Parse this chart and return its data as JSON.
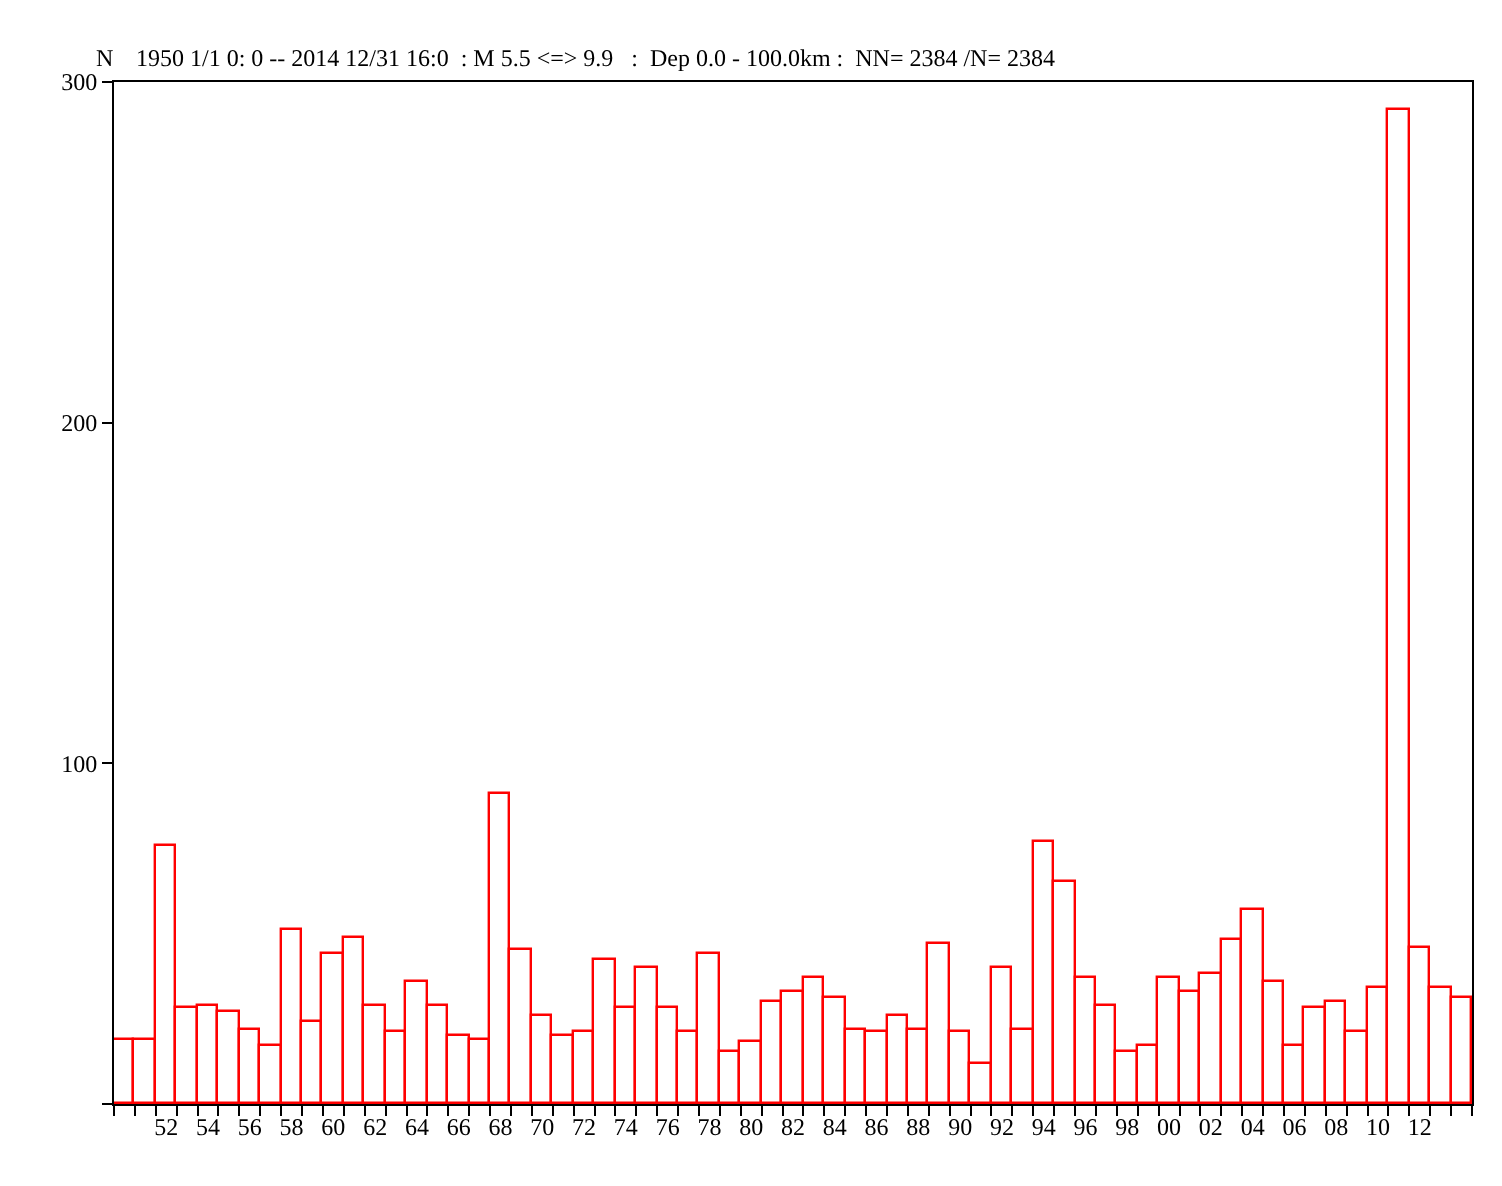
{
  "chart_data": {
    "type": "bar",
    "title": "1950 1/1 0: 0 -- 2014 12/31 16:0  : M 5.5 <=> 9.9   :  Dep 0.0 - 100.0km :  NN= 2384 /N= 2384",
    "ylabel": "N",
    "categories": [
      null,
      null,
      "52",
      null,
      "54",
      null,
      "56",
      null,
      "58",
      null,
      "60",
      null,
      "62",
      null,
      "64",
      null,
      "66",
      null,
      "68",
      null,
      "70",
      null,
      "72",
      null,
      "74",
      null,
      "76",
      null,
      "78",
      null,
      "80",
      null,
      "82",
      null,
      "84",
      null,
      "86",
      null,
      "88",
      null,
      "90",
      null,
      "92",
      null,
      "94",
      null,
      "96",
      null,
      "98",
      null,
      "00",
      null,
      "02",
      null,
      "04",
      null,
      "06",
      null,
      "08",
      null,
      "10",
      null,
      "12",
      null,
      null
    ],
    "series": [
      {
        "color": "#ff0000",
        "values": [
          19,
          19,
          76,
          28,
          29,
          27,
          22,
          17,
          51,
          24,
          44,
          49,
          29,
          21,
          36,
          29,
          20,
          19,
          91,
          45,
          26,
          20,
          21,
          42,
          28,
          40,
          28,
          21,
          44,
          15,
          18,
          30,
          33,
          37,
          31,
          22,
          21,
          26,
          22,
          47,
          21,
          12,
          40,
          22,
          77,
          65,
          37,
          29,
          15,
          17,
          37,
          33,
          38,
          48,
          57,
          36,
          17,
          28,
          30,
          21,
          34,
          292,
          46,
          34,
          31
        ]
      }
    ],
    "ylim": [
      0,
      300
    ],
    "yticks": [
      {
        "value": 0,
        "label": null
      },
      100,
      200,
      300
    ]
  }
}
